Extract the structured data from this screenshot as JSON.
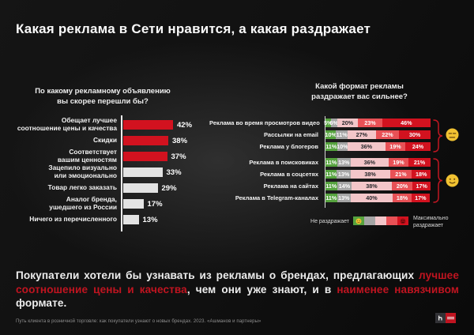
{
  "title": "Какая реклама в Сети нравится, а какая раздражает",
  "left_chart": {
    "title_line1": "По какому рекламному объявлению",
    "title_line2": "вы скорее перешли бы?"
  },
  "right_chart": {
    "title_line1": "Какой формат рекламы",
    "title_line2": "раздражает вас сильнее?",
    "legend_left": "Не раздражает",
    "legend_right_line1": "Максимально",
    "legend_right_line2": "раздражает"
  },
  "chart_data": [
    {
      "type": "bar",
      "orientation": "horizontal",
      "title": "По какому рекламному объявлению вы скорее перешли бы?",
      "categories": [
        "Обещает лучшее\nсоотношение цены и качества",
        "Скидки",
        "Соответствует\nвашим ценностям",
        "Зацепило визуально\nили эмоционально",
        "Товар легко заказать",
        "Аналог бренда,\nушедшего из России",
        "Ничего из перечисленного"
      ],
      "values": [
        42,
        38,
        37,
        33,
        29,
        17,
        13
      ],
      "unit": "%",
      "highlighted": [
        true,
        true,
        true,
        false,
        false,
        false,
        false
      ],
      "highlight_color": "#d2121f",
      "muted_color": "#e3e3e3",
      "xlim": [
        0,
        45
      ]
    },
    {
      "type": "bar",
      "stacked": true,
      "orientation": "horizontal",
      "title": "Какой формат рекламы раздражает вас сильнее?",
      "categories": [
        "Реклама во время просмотров видео",
        "Рассылки на email",
        "Реклама у блогеров",
        "Реклама в поисковиках",
        "Реклама в соцсетях",
        "Реклама на сайтах",
        "Реклама в Telegram-каналах"
      ],
      "scale_colors": [
        "#56a33e",
        "#a5a5a5",
        "#f3c6c9",
        "#e85156",
        "#d2121f"
      ],
      "series": [
        {
          "name": "1 — не раздражает",
          "values": [
            5,
            10,
            11,
            11,
            11,
            11,
            11
          ]
        },
        {
          "name": "2",
          "values": [
            6,
            11,
            10,
            13,
            13,
            14,
            13
          ]
        },
        {
          "name": "3",
          "values": [
            20,
            27,
            36,
            36,
            38,
            38,
            40
          ]
        },
        {
          "name": "4",
          "values": [
            23,
            22,
            19,
            19,
            21,
            20,
            18
          ]
        },
        {
          "name": "5 — максимально раздражает",
          "values": [
            46,
            30,
            24,
            21,
            18,
            17,
            17
          ]
        }
      ],
      "groups": [
        {
          "rows": [
            0,
            1,
            2
          ],
          "emoji": "unamused-face"
        },
        {
          "rows": [
            3,
            4,
            5,
            6
          ],
          "emoji": "slightly-smiling-face"
        }
      ],
      "legend": {
        "left": "Не раздражает",
        "right": "Максимально раздражает"
      },
      "xlim": [
        0,
        100
      ]
    }
  ],
  "summary": {
    "segments": [
      {
        "text": "Покупатели хотели бы узнавать из рекламы о брендах, предлагающих ",
        "accent": false
      },
      {
        "text": "лучшее соотношение цены и качества",
        "accent": true
      },
      {
        "text": ", чем они уже знают, и в ",
        "accent": false
      },
      {
        "text": "наименее навязчивом",
        "accent": true
      },
      {
        "text": " формате.",
        "accent": false
      }
    ]
  },
  "footer": {
    "source": "Путь клиента в розничной торговле: как покупатели узнают о новых брендах. 2023. «Ашманов и партнеры»"
  }
}
